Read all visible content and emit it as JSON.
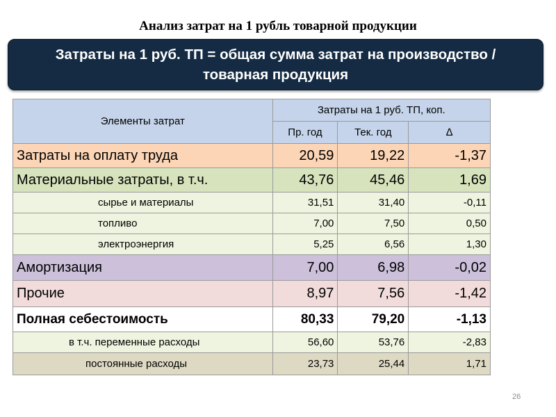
{
  "title": "Анализ затрат на 1 рубль товарной продукции",
  "banner": {
    "line1": "Затраты на 1 руб. ТП = общая сумма затрат на производство /",
    "line2": "товарная продукция"
  },
  "table": {
    "headers": {
      "elements": "Элементы затрат",
      "group": "Затраты на 1 руб. ТП, коп.",
      "prev": "Пр. год",
      "curr": "Тек. год",
      "delta": "∆"
    },
    "rows": [
      {
        "label": "Затраты на оплату труда",
        "prev": "20,59",
        "curr": "19,22",
        "delta": "-1,37"
      },
      {
        "label": "Материальные затраты, в т.ч.",
        "prev": "43,76",
        "curr": "45,46",
        "delta": "1,69"
      },
      {
        "label": "сырье и материалы",
        "prev": "31,51",
        "curr": "31,40",
        "delta": "-0,11"
      },
      {
        "label": "топливо",
        "prev": "7,00",
        "curr": "7,50",
        "delta": "0,50"
      },
      {
        "label": "электроэнергия",
        "prev": "5,25",
        "curr": "6,56",
        "delta": "1,30"
      },
      {
        "label": "Амортизация",
        "prev": "7,00",
        "curr": "6,98",
        "delta": "-0,02"
      },
      {
        "label": "Прочие",
        "prev": "8,97",
        "curr": "7,56",
        "delta": "-1,42"
      },
      {
        "label": "Полная себестоимость",
        "prev": "80,33",
        "curr": "79,20",
        "delta": "-1,13"
      },
      {
        "label": "в т.ч. переменные расходы",
        "prev": "56,60",
        "curr": "53,76",
        "delta": "-2,83"
      },
      {
        "label": "постоянные расходы",
        "prev": "23,73",
        "curr": "25,44",
        "delta": "1,71"
      }
    ]
  },
  "page_number": "26",
  "colors": {
    "banner": "#142b43",
    "header": "#c5d4ea",
    "labor": "#fbd5b5",
    "materials": "#d6e3bc",
    "sub_rows": "#eef4df",
    "amortization": "#ccc0da",
    "other": "#f2dcdb",
    "fixed": "#ddd9c3"
  }
}
